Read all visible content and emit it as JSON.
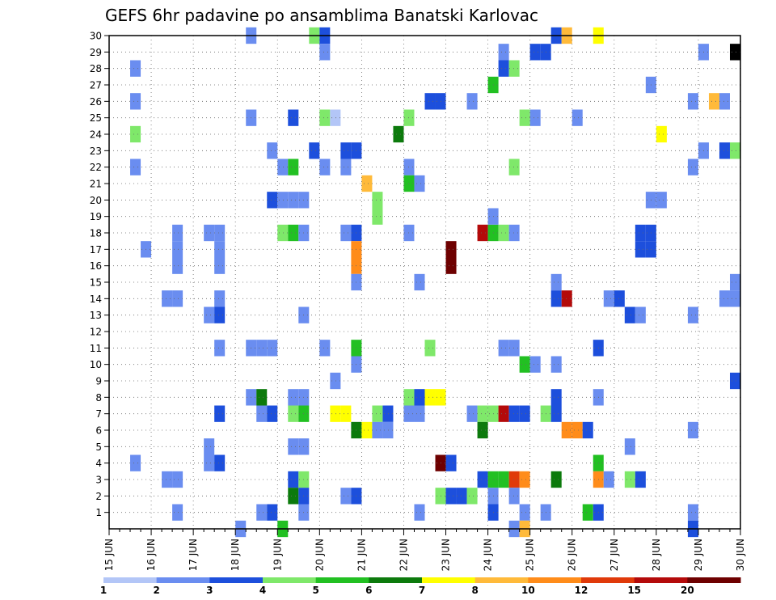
{
  "chart_data": {
    "type": "heatmap",
    "title": "GEFS 6hr padavine po ansamblima Banatski Karlovac",
    "x_tick_labels": [
      "15 JUN",
      "16 JUN",
      "17 JUN",
      "18 JUN",
      "19 JUN",
      "20 JUN",
      "21 JUN",
      "22 JUN",
      "23 JUN",
      "24 JUN",
      "25 JUN",
      "26 JUN",
      "27 JUN",
      "28 JUN",
      "29 JUN",
      "30 JUN"
    ],
    "y_tick_labels": [
      "1",
      "2",
      "3",
      "4",
      "5",
      "6",
      "7",
      "8",
      "9",
      "10",
      "11",
      "12",
      "13",
      "14",
      "15",
      "16",
      "17",
      "18",
      "19",
      "20",
      "21",
      "22",
      "23",
      "24",
      "25",
      "26",
      "27",
      "28",
      "29",
      "30"
    ],
    "xlim": [
      0,
      60
    ],
    "ylim": [
      0,
      30
    ],
    "grid": true,
    "colorbar": {
      "levels": [
        "1",
        "2",
        "3",
        "4",
        "5",
        "6",
        "7",
        "8",
        "10",
        "12",
        "15",
        "20"
      ],
      "colors": [
        "#b3c6f7",
        "#6a8df0",
        "#1d4fdc",
        "#7fe86a",
        "#22c022",
        "#0c7a0c",
        "#ffff00",
        "#ffba3a",
        "#ff8c1a",
        "#e03a0a",
        "#b40a0a",
        "#6e0000"
      ]
    },
    "cells": [
      [
        13,
        30,
        1
      ],
      [
        19,
        30,
        3
      ],
      [
        20,
        30,
        2
      ],
      [
        42,
        30,
        2
      ],
      [
        43,
        30,
        7
      ],
      [
        46,
        30,
        6
      ],
      [
        20,
        29,
        1
      ],
      [
        37,
        29,
        1
      ],
      [
        40,
        29,
        2
      ],
      [
        41,
        29,
        2
      ],
      [
        56,
        29,
        1
      ],
      [
        59,
        29,
        12
      ],
      [
        2,
        28,
        1
      ],
      [
        37,
        28,
        2
      ],
      [
        38,
        28,
        3
      ],
      [
        51,
        27,
        1
      ],
      [
        36,
        27,
        4
      ],
      [
        2,
        26,
        1
      ],
      [
        30,
        26,
        2
      ],
      [
        31,
        26,
        2
      ],
      [
        34,
        26,
        1
      ],
      [
        55,
        26,
        1
      ],
      [
        57,
        26,
        7
      ],
      [
        58,
        26,
        1
      ],
      [
        20,
        25,
        3
      ],
      [
        13,
        25,
        1
      ],
      [
        40,
        25,
        1
      ],
      [
        44,
        25,
        1
      ],
      [
        28,
        25,
        3
      ],
      [
        39,
        25,
        3
      ],
      [
        17,
        25,
        2
      ],
      [
        21,
        25,
        0
      ],
      [
        2,
        24,
        3
      ],
      [
        27,
        24,
        5
      ],
      [
        52,
        24,
        6
      ],
      [
        15,
        23,
        1
      ],
      [
        19,
        23,
        2
      ],
      [
        22,
        23,
        2
      ],
      [
        23,
        23,
        2
      ],
      [
        56,
        23,
        1
      ],
      [
        58,
        23,
        2
      ],
      [
        59,
        23,
        3
      ],
      [
        2,
        22,
        1
      ],
      [
        20,
        22,
        1
      ],
      [
        16,
        22,
        1
      ],
      [
        17,
        22,
        4
      ],
      [
        22,
        22,
        1
      ],
      [
        28,
        22,
        1
      ],
      [
        38,
        22,
        3
      ],
      [
        55,
        22,
        1
      ],
      [
        24,
        21,
        7
      ],
      [
        28,
        21,
        4
      ],
      [
        29,
        21,
        1
      ],
      [
        15,
        20,
        2
      ],
      [
        16,
        20,
        1
      ],
      [
        17,
        20,
        1
      ],
      [
        18,
        20,
        1
      ],
      [
        25,
        20,
        3
      ],
      [
        51,
        20,
        1
      ],
      [
        52,
        20,
        1
      ],
      [
        25,
        19,
        3
      ],
      [
        6,
        18,
        1
      ],
      [
        9,
        18,
        1
      ],
      [
        10,
        18,
        1
      ],
      [
        16,
        18,
        3
      ],
      [
        17,
        18,
        4
      ],
      [
        18,
        18,
        1
      ],
      [
        22,
        18,
        1
      ],
      [
        23,
        18,
        2
      ],
      [
        28,
        18,
        1
      ],
      [
        35,
        18,
        10
      ],
      [
        36,
        18,
        4
      ],
      [
        37,
        18,
        3
      ],
      [
        38,
        18,
        1
      ],
      [
        50,
        18,
        2
      ],
      [
        51,
        18,
        2
      ],
      [
        36,
        19,
        1
      ],
      [
        3,
        17,
        1
      ],
      [
        6,
        17,
        1
      ],
      [
        10,
        17,
        1
      ],
      [
        23,
        17,
        8
      ],
      [
        32,
        17,
        11
      ],
      [
        50,
        17,
        2
      ],
      [
        51,
        17,
        2
      ],
      [
        6,
        16,
        1
      ],
      [
        10,
        16,
        1
      ],
      [
        23,
        16,
        8
      ],
      [
        32,
        16,
        11
      ],
      [
        23,
        15,
        1
      ],
      [
        29,
        15,
        1
      ],
      [
        42,
        15,
        1
      ],
      [
        59,
        15,
        1
      ],
      [
        5,
        14,
        1
      ],
      [
        6,
        14,
        1
      ],
      [
        10,
        14,
        1
      ],
      [
        42,
        14,
        2
      ],
      [
        43,
        14,
        10
      ],
      [
        47,
        14,
        1
      ],
      [
        48,
        14,
        2
      ],
      [
        58,
        14,
        1
      ],
      [
        59,
        14,
        1
      ],
      [
        9,
        13,
        1
      ],
      [
        10,
        13,
        2
      ],
      [
        18,
        13,
        1
      ],
      [
        49,
        13,
        2
      ],
      [
        50,
        13,
        1
      ],
      [
        55,
        13,
        1
      ],
      [
        10,
        11,
        1
      ],
      [
        13,
        11,
        1
      ],
      [
        14,
        11,
        1
      ],
      [
        15,
        11,
        1
      ],
      [
        20,
        11,
        1
      ],
      [
        23,
        11,
        4
      ],
      [
        30,
        11,
        3
      ],
      [
        37,
        11,
        1
      ],
      [
        38,
        11,
        1
      ],
      [
        46,
        11,
        2
      ],
      [
        23,
        10,
        1
      ],
      [
        39,
        10,
        4
      ],
      [
        40,
        10,
        1
      ],
      [
        42,
        10,
        1
      ],
      [
        21,
        9,
        1
      ],
      [
        59,
        9,
        2
      ],
      [
        13,
        8,
        1
      ],
      [
        14,
        8,
        5
      ],
      [
        17,
        8,
        1
      ],
      [
        18,
        8,
        1
      ],
      [
        28,
        8,
        3
      ],
      [
        29,
        8,
        2
      ],
      [
        30,
        8,
        6
      ],
      [
        31,
        8,
        6
      ],
      [
        42,
        8,
        2
      ],
      [
        46,
        8,
        1
      ],
      [
        10,
        7,
        2
      ],
      [
        14,
        7,
        1
      ],
      [
        15,
        7,
        2
      ],
      [
        17,
        7,
        3
      ],
      [
        18,
        7,
        4
      ],
      [
        21,
        7,
        6
      ],
      [
        22,
        7,
        6
      ],
      [
        25,
        7,
        3
      ],
      [
        26,
        7,
        2
      ],
      [
        28,
        7,
        1
      ],
      [
        29,
        7,
        1
      ],
      [
        34,
        7,
        1
      ],
      [
        35,
        7,
        3
      ],
      [
        36,
        7,
        3
      ],
      [
        37,
        7,
        10
      ],
      [
        38,
        7,
        2
      ],
      [
        39,
        7,
        2
      ],
      [
        41,
        7,
        3
      ],
      [
        42,
        7,
        2
      ],
      [
        23,
        6,
        5
      ],
      [
        24,
        6,
        6
      ],
      [
        25,
        6,
        1
      ],
      [
        26,
        6,
        1
      ],
      [
        35,
        6,
        5
      ],
      [
        43,
        6,
        8
      ],
      [
        44,
        6,
        8
      ],
      [
        45,
        6,
        2
      ],
      [
        55,
        6,
        1
      ],
      [
        9,
        5,
        1
      ],
      [
        17,
        5,
        1
      ],
      [
        18,
        5,
        1
      ],
      [
        49,
        5,
        1
      ],
      [
        2,
        4,
        1
      ],
      [
        9,
        4,
        1
      ],
      [
        10,
        4,
        2
      ],
      [
        31,
        4,
        11
      ],
      [
        32,
        4,
        2
      ],
      [
        46,
        4,
        4
      ],
      [
        5,
        3,
        1
      ],
      [
        6,
        3,
        1
      ],
      [
        17,
        3,
        2
      ],
      [
        18,
        3,
        3
      ],
      [
        35,
        3,
        2
      ],
      [
        36,
        3,
        4
      ],
      [
        37,
        3,
        4
      ],
      [
        38,
        3,
        9
      ],
      [
        39,
        3,
        8
      ],
      [
        42,
        3,
        5
      ],
      [
        46,
        3,
        8
      ],
      [
        47,
        3,
        1
      ],
      [
        49,
        3,
        3
      ],
      [
        50,
        3,
        2
      ],
      [
        17,
        2,
        5
      ],
      [
        18,
        2,
        2
      ],
      [
        22,
        2,
        1
      ],
      [
        23,
        2,
        2
      ],
      [
        31,
        2,
        3
      ],
      [
        32,
        2,
        2
      ],
      [
        33,
        2,
        2
      ],
      [
        34,
        2,
        3
      ],
      [
        36,
        2,
        1
      ],
      [
        38,
        2,
        1
      ],
      [
        6,
        1,
        1
      ],
      [
        14,
        1,
        1
      ],
      [
        15,
        1,
        2
      ],
      [
        18,
        1,
        1
      ],
      [
        29,
        1,
        1
      ],
      [
        36,
        1,
        2
      ],
      [
        39,
        1,
        1
      ],
      [
        41,
        1,
        1
      ],
      [
        45,
        1,
        4
      ],
      [
        46,
        1,
        2
      ],
      [
        55,
        1,
        1
      ],
      [
        12,
        0,
        1
      ],
      [
        16,
        0,
        4
      ],
      [
        38,
        0,
        1
      ],
      [
        39,
        0,
        7
      ],
      [
        55,
        0,
        2
      ]
    ]
  }
}
